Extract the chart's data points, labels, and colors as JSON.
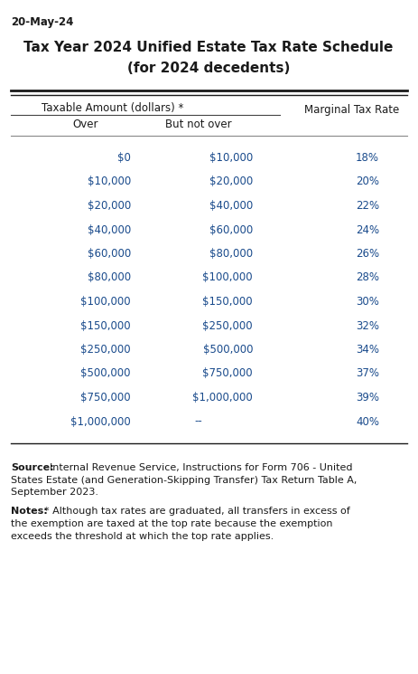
{
  "date_label": "20-May-24",
  "title_line1": "Tax Year 2024 Unified Estate Tax Rate Schedule",
  "title_line2": "(for 2024 decedents)",
  "col_header_span": "Taxable Amount (dollars) *",
  "col1_header": "Over",
  "col2_header": "But not over",
  "col3_header": "Marginal Tax Rate",
  "rows": [
    [
      "$0",
      "$10,000",
      "18%"
    ],
    [
      "$10,000",
      "$20,000",
      "20%"
    ],
    [
      "$20,000",
      "$40,000",
      "22%"
    ],
    [
      "$40,000",
      "$60,000",
      "24%"
    ],
    [
      "$60,000",
      "$80,000",
      "26%"
    ],
    [
      "$80,000",
      "$100,000",
      "28%"
    ],
    [
      "$100,000",
      "$150,000",
      "30%"
    ],
    [
      "$150,000",
      "$250,000",
      "32%"
    ],
    [
      "$250,000",
      "$500,000",
      "34%"
    ],
    [
      "$500,000",
      "$750,000",
      "37%"
    ],
    [
      "$750,000",
      "$1,000,000",
      "39%"
    ],
    [
      "$1,000,000",
      "--",
      "40%"
    ]
  ],
  "source_bold": "Source:",
  "source_line1": "Internal Revenue Service, Instructions for Form 706 - United",
  "source_line2": "States Estate (and Generation-Skipping Transfer) Tax Return Table A,",
  "source_line3": "September 2023.",
  "notes_bold": "Notes:",
  "notes_line1": "* Although tax rates are graduated, all transfers in excess of",
  "notes_line2": "the exemption are taxed at the top rate because the exemption",
  "notes_line3": "exceeds the threshold at which the top rate applies.",
  "text_color": "#1a1a1a",
  "blue_color": "#1a4b8c",
  "bg_color": "#ffffff",
  "font_size_date": 8.5,
  "font_size_title": 11,
  "font_size_table": 8.5,
  "font_size_footer": 8.0,
  "fig_w": 4.63,
  "fig_h": 7.45,
  "dpi": 100
}
